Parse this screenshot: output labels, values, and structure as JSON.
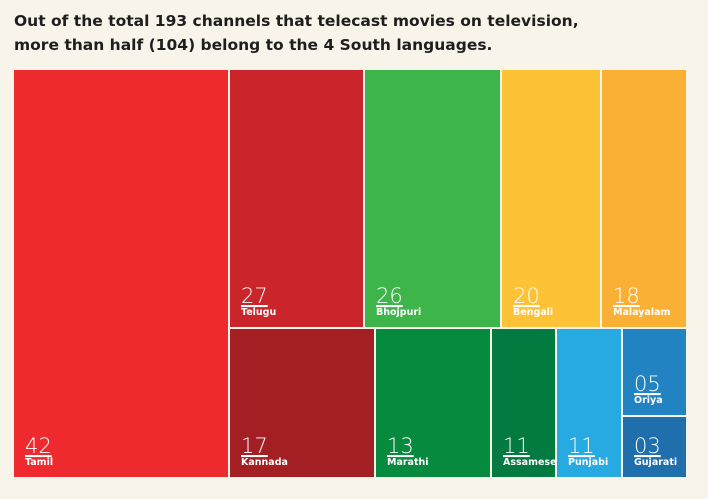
{
  "chart_data": {
    "type": "treemap",
    "title": [
      "Out of the total 193 channels that telecast movies on television,",
      "more than half (104) belong to the 4 South languages."
    ],
    "categories": [
      "Tamil",
      "Telugu",
      "Bhojpuri",
      "Bengali",
      "Malayalam",
      "Kannada",
      "Marathi",
      "Assamese",
      "Punjabi",
      "Oriya",
      "Gujarati"
    ],
    "values": [
      42,
      27,
      26,
      20,
      18,
      17,
      13,
      11,
      11,
      5,
      3
    ],
    "value_labels": [
      "42",
      "27",
      "26",
      "20",
      "18",
      "17",
      "13",
      "11",
      "11",
      "05",
      "03"
    ],
    "colors": [
      "#ee2a2f",
      "#c9252b",
      "#3db54a",
      "#fdc236",
      "#f9b035",
      "#a31f24",
      "#068a3e",
      "#027a40",
      "#27a9e1",
      "#2283c3",
      "#1f6fad"
    ]
  }
}
